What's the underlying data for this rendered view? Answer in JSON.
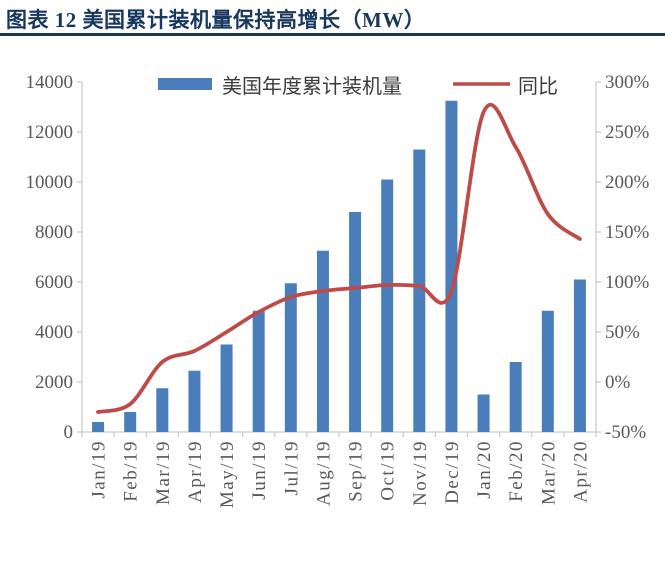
{
  "header": {
    "title": "图表 12 美国累计装机量保持高增长（MW）"
  },
  "colors": {
    "bar": "#4A7EBB",
    "line": "#BE4B48",
    "title": "#17375E",
    "rule": "#17375E",
    "axis_text": "#595959",
    "axis_line": "#C9C9C9",
    "legend_text": "#3B3B3B"
  },
  "chart_data": {
    "type": "combo bar+line",
    "title": "图表 12 美国累计装机量保持高增长（MW）",
    "categories": [
      "Jan/19",
      "Feb/19",
      "Mar/19",
      "Apr/19",
      "May/19",
      "Jun/19",
      "Jul/19",
      "Aug/19",
      "Sep/19",
      "Oct/19",
      "Nov/19",
      "Dec/19",
      "Jan/20",
      "Feb/20",
      "Mar/20",
      "Apr/20"
    ],
    "series": [
      {
        "name": "美国年度累计装机量",
        "type": "bar",
        "yaxis": "left",
        "unit": "MW",
        "values": [
          400,
          800,
          1750,
          2450,
          3500,
          4850,
          5950,
          7250,
          8800,
          10100,
          11300,
          13250,
          1500,
          2800,
          4850,
          6100
        ]
      },
      {
        "name": "同比",
        "type": "line",
        "yaxis": "right",
        "unit": "%",
        "values": [
          -30,
          -22,
          20,
          31,
          50,
          70,
          85,
          91,
          94,
          97,
          96,
          91,
          270,
          235,
          168,
          143
        ]
      }
    ],
    "left_axis": {
      "range": [
        0,
        14000
      ],
      "tick_step": 2000,
      "tick_labels": [
        "0",
        "2000",
        "4000",
        "6000",
        "8000",
        "10000",
        "12000",
        "14000"
      ]
    },
    "right_axis": {
      "range": [
        -50,
        300
      ],
      "tick_step": 50,
      "tick_labels": [
        "-50%",
        "0%",
        "50%",
        "100%",
        "150%",
        "200%",
        "250%",
        "300%"
      ]
    },
    "grid": false,
    "legend_position": "top"
  }
}
